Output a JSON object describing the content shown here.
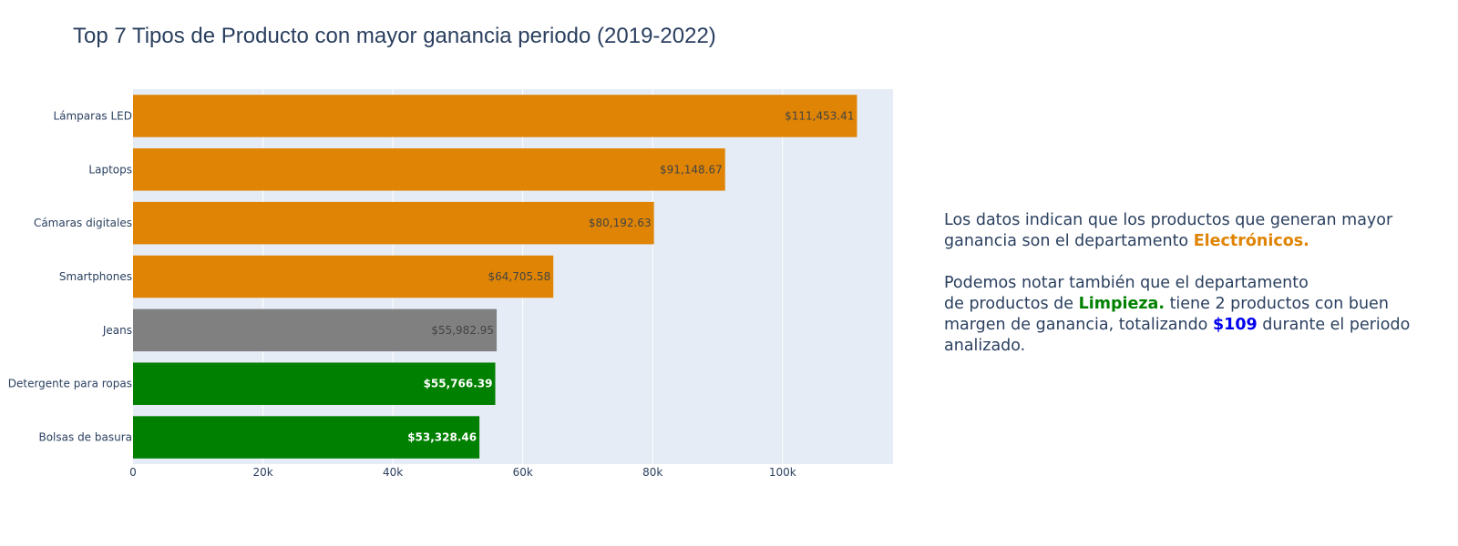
{
  "title": "Top 7 Tipos de Producto con mayor ganancia periodo (2019-2022)",
  "chart_data": {
    "type": "bar",
    "orientation": "horizontal",
    "title": "Top 7 Tipos de Producto con mayor ganancia periodo (2019-2022)",
    "xlabel": "",
    "ylabel": "",
    "xlim": [
      0,
      117000
    ],
    "grid": true,
    "categories": [
      "Lámparas LED",
      "Laptops",
      "Cámaras digitales",
      "Smartphones",
      "Jeans",
      "Detergente para ropas",
      "Bolsas de basura"
    ],
    "values": [
      111453.41,
      91148.67,
      80192.63,
      64705.58,
      55982.95,
      55766.39,
      53328.46
    ],
    "labels": [
      "$111,453.41",
      "$91,148.67",
      "$80,192.63",
      "$64,705.58",
      "$55,982.95",
      "$55,766.39",
      "$53,328.46"
    ],
    "colors": [
      "#DF8404",
      "#DF8404",
      "#DF8404",
      "#DF8404",
      "#808080",
      "#008000",
      "#008000"
    ],
    "x_ticks": [
      {
        "value": 0,
        "label": "0"
      },
      {
        "value": 20000,
        "label": "20k"
      },
      {
        "value": 40000,
        "label": "40k"
      },
      {
        "value": 60000,
        "label": "60k"
      },
      {
        "value": 80000,
        "label": "80k"
      },
      {
        "value": 100000,
        "label": "100k"
      }
    ]
  },
  "annotation": {
    "p1_text": "Los datos indican que los productos que generan mayor ganancia son el departamento ",
    "p1_highlight": "Electrónicos.",
    "p2_line1": "Podemos notar también que el departamento",
    "p2_text_a": "de productos de ",
    "p2_highlight_a": "Limpieza.",
    "p2_text_b": " tiene 2 productos con buen margen de ganancia, totalizando ",
    "p2_highlight_b": "$109",
    "p2_text_c": " durante el periodo analizado."
  },
  "colors": {
    "electronicos": "#DF8404",
    "ropa": "#808080",
    "limpieza": "#008000",
    "highlight_blue": "#0000EE",
    "plot_bg": "#E5ECF6",
    "text": "#2a3f5f"
  }
}
